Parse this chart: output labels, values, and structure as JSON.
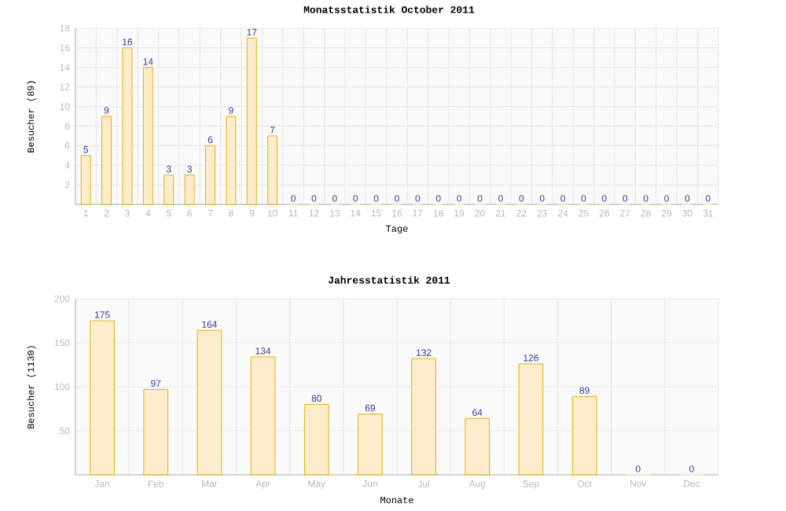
{
  "chart_data": [
    {
      "type": "bar",
      "title": "Monatsstatistik October 2011",
      "xlabel": "Tage",
      "ylabel": "Besucher (89)",
      "categories": [
        "1",
        "2",
        "3",
        "4",
        "5",
        "6",
        "7",
        "8",
        "9",
        "10",
        "11",
        "12",
        "13",
        "14",
        "15",
        "16",
        "17",
        "18",
        "19",
        "20",
        "21",
        "22",
        "23",
        "24",
        "25",
        "26",
        "27",
        "28",
        "29",
        "30",
        "31"
      ],
      "values": [
        5,
        9,
        16,
        14,
        3,
        3,
        6,
        9,
        17,
        7,
        0,
        0,
        0,
        0,
        0,
        0,
        0,
        0,
        0,
        0,
        0,
        0,
        0,
        0,
        0,
        0,
        0,
        0,
        0,
        0,
        0
      ],
      "color": "#fdedcc",
      "ylim": [
        0,
        18
      ],
      "yticks": [
        2,
        4,
        6,
        8,
        10,
        12,
        14,
        16,
        18
      ],
      "grid": true,
      "data_labels": true
    },
    {
      "type": "bar",
      "title": "Jahresstatistik 2011",
      "xlabel": "Monate",
      "ylabel": "Besucher (1130)",
      "categories": [
        "Jan",
        "Feb",
        "Mar",
        "Apr",
        "May",
        "Jun",
        "Jul",
        "Aug",
        "Sep",
        "Oct",
        "Nov",
        "Dec"
      ],
      "values": [
        175,
        97,
        164,
        134,
        80,
        69,
        132,
        64,
        126,
        89,
        0,
        0
      ],
      "color": "#fdedcc",
      "ylim": [
        0,
        200
      ],
      "yticks": [
        50,
        100,
        150,
        200
      ],
      "grid": true,
      "data_labels": true
    }
  ]
}
